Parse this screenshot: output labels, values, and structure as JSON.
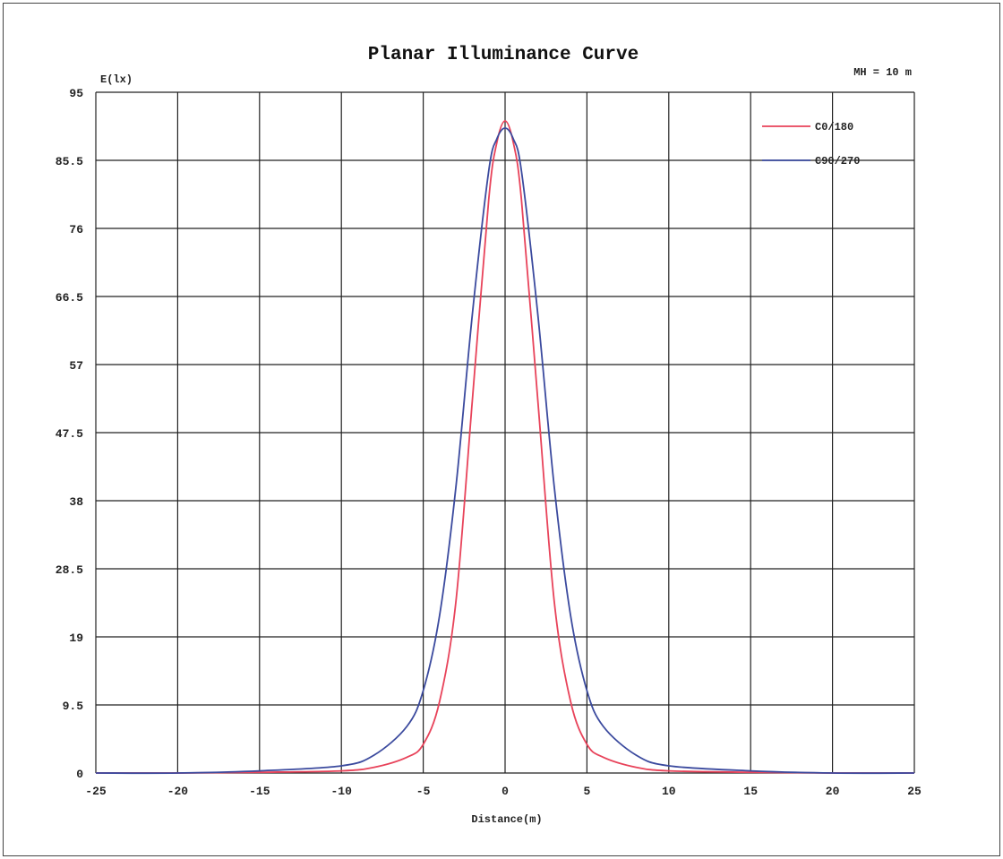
{
  "chart_data": {
    "type": "line",
    "title": "Planar Illuminance Curve",
    "annotation": "MH = 10 m",
    "ylabel": "E(lx)",
    "xlabel": "Distance(m)",
    "xlim": [
      -25,
      25
    ],
    "ylim": [
      0,
      95
    ],
    "x_ticks": [
      -25,
      -20,
      -15,
      -10,
      -5,
      0,
      5,
      10,
      15,
      20,
      25
    ],
    "x_tick_labels": [
      "-25",
      "-20",
      "-15",
      "-10",
      "-5",
      "0",
      "5",
      "10",
      "15",
      "20",
      "25"
    ],
    "y_ticks": [
      0,
      9.5,
      19,
      28.5,
      38,
      47.5,
      57,
      66.5,
      76,
      85.5,
      95
    ],
    "y_tick_labels": [
      "0",
      "9.5",
      "19",
      "28.5",
      "38",
      "47.5",
      "57",
      "66.5",
      "76",
      "85.5",
      "95"
    ],
    "grid": true,
    "legend_position": "top-right",
    "series": [
      {
        "name": "C0/180",
        "color": "#e8435a",
        "x": [
          -25,
          -20,
          -15,
          -10,
          -8,
          -6,
          -5,
          -4,
          -3,
          -2,
          -1,
          -0.5,
          0,
          0.5,
          1,
          2,
          3,
          4,
          5,
          6,
          8,
          10,
          15,
          20,
          25
        ],
        "y": [
          0,
          0,
          0.1,
          0.3,
          0.8,
          2.2,
          4,
          10,
          24,
          52,
          80,
          88,
          91,
          88,
          80,
          52,
          24,
          10,
          4,
          2.2,
          0.8,
          0.3,
          0.1,
          0,
          0
        ]
      },
      {
        "name": "C90/270",
        "color": "#3b4a9e",
        "x": [
          -25,
          -20,
          -15,
          -10,
          -8,
          -6,
          -5,
          -4,
          -3,
          -2,
          -1,
          -0.5,
          0,
          0.5,
          1,
          2,
          3,
          4,
          5,
          6,
          8,
          10,
          15,
          20,
          25
        ],
        "y": [
          0,
          0,
          0.3,
          1,
          2.5,
          6.5,
          11.5,
          22,
          40,
          64,
          84,
          88.5,
          90,
          88.5,
          84,
          64,
          40,
          22,
          11.5,
          6.5,
          2.5,
          1,
          0.3,
          0,
          0
        ]
      }
    ]
  }
}
